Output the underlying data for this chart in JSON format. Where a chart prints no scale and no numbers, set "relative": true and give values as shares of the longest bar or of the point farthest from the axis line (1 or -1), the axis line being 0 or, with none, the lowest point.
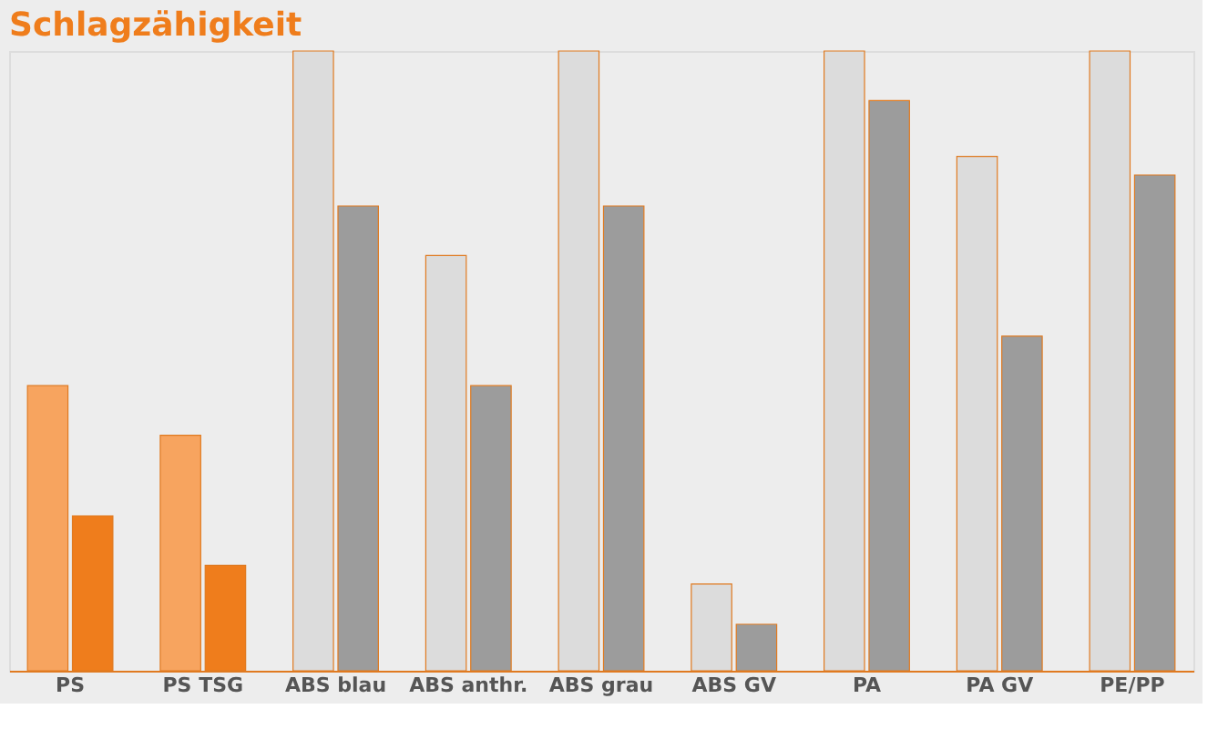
{
  "chart_data": {
    "type": "bar",
    "title": "Schlagzähigkeit",
    "relative": true,
    "categories": [
      "PS",
      "PS TSG",
      "ABS blau",
      "ABS anthr.",
      "ABS grau",
      "ABS GV",
      "PA",
      "PA GV",
      "PE/PP"
    ],
    "series": [
      {
        "colors": [
          "#f7a45f",
          "#f7a45f",
          "#dcdcdc",
          "#dcdcdc",
          "#dcdcdc",
          "#dcdcdc",
          "#dcdcdc",
          "#dcdcdc",
          "#dcdcdc"
        ],
        "values": [
          0.46,
          0.38,
          1.0,
          0.67,
          1.0,
          0.14,
          1.0,
          0.83,
          1.0
        ]
      },
      {
        "colors": [
          "#ef7d1c",
          "#ef7d1c",
          "#9c9c9c",
          "#9c9c9c",
          "#9c9c9c",
          "#9c9c9c",
          "#9c9c9c",
          "#9c9c9c",
          "#9c9c9c"
        ],
        "values": [
          0.25,
          0.17,
          0.75,
          0.46,
          0.75,
          0.075,
          0.92,
          0.54,
          0.8
        ]
      }
    ]
  }
}
